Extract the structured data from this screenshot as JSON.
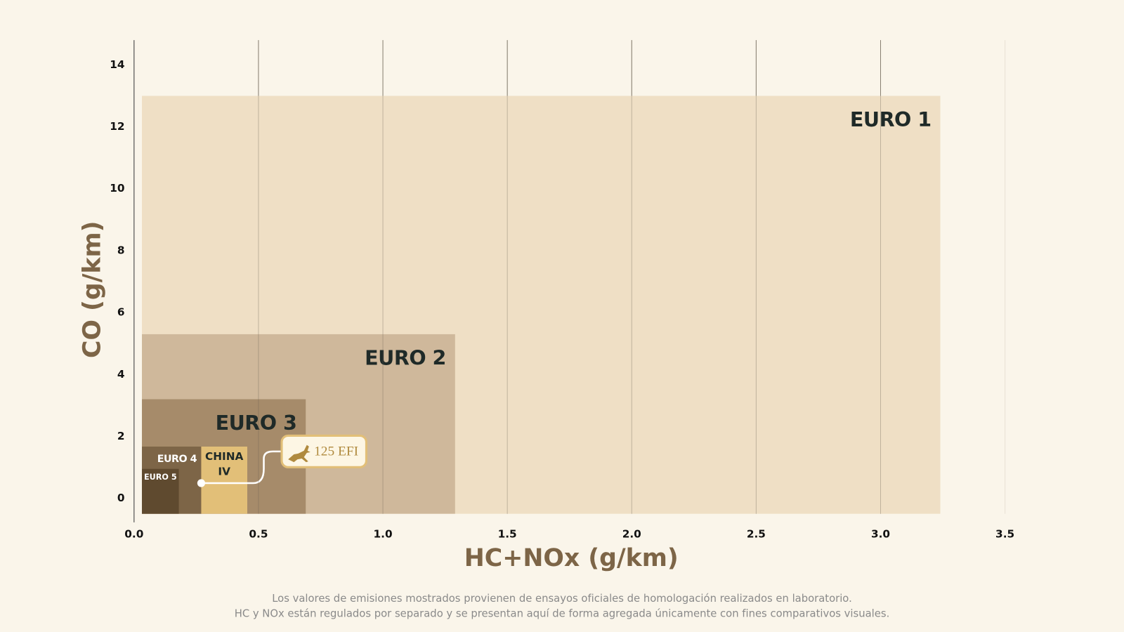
{
  "chart_data": {
    "type": "regions",
    "x_label": "HC+NOx (g/km)",
    "y_label": "CO (g/km)",
    "xlim": [
      0,
      3.5
    ],
    "xticks": [
      {
        "value": 0,
        "label": "0.0"
      },
      0.5,
      {
        "value": 1,
        "label": "1.0"
      },
      1.5,
      {
        "value": 2,
        "label": "2.0"
      },
      2.5,
      {
        "value": 3,
        "label": "3.0"
      },
      3.5
    ],
    "ylim": [
      -0.5,
      14.8
    ],
    "yticks": [
      0,
      2,
      4,
      6,
      8,
      10,
      12,
      14
    ],
    "grid": true,
    "regions": [
      {
        "name": "EURO 1",
        "x": 3.24,
        "y": 13,
        "color": "#efdfc5"
      },
      {
        "name": "EURO 2",
        "x": 1.29,
        "y": 5.3,
        "color": "#cfb89b"
      },
      {
        "name": "EURO 3",
        "x": 0.69,
        "y": 3.2,
        "color": "#a68b6a"
      },
      {
        "name": "EURO 4",
        "x": 0.27,
        "y": 1.67,
        "color": "#7d6547"
      },
      {
        "name": "EURO 5",
        "x": 0.18,
        "y": 0.95,
        "color": "#5f4a2f"
      },
      {
        "name": "CHINA IV",
        "x": 0.455,
        "x_start": 0.27,
        "y": 1.67,
        "color": "#e2bf78"
      }
    ],
    "point": {
      "label": "125 EFI",
      "x": 0.27,
      "y": 0.49
    },
    "notes": [
      "Los valores de emisiones mostrados provienen de ensayos oficiales de homologación realizados en laboratorio.",
      "HC y NOx están regulados por separado y se presentan aquí de forma agregada únicamente con fines comparativos visuales."
    ]
  }
}
